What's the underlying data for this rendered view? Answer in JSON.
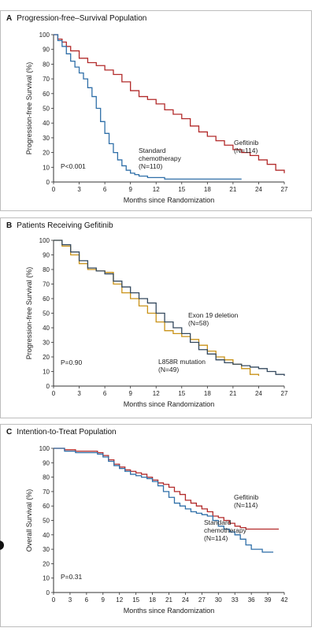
{
  "chart_data": [
    {
      "type": "line",
      "panel_letter": "A",
      "title": "Progression-free–Survival Population",
      "xlabel": "Months since Randomization",
      "ylabel": "Progression-free Survival (%)",
      "xlim": [
        0,
        27
      ],
      "ylim": [
        0,
        100
      ],
      "xticks": [
        0,
        3,
        6,
        9,
        12,
        15,
        18,
        21,
        24,
        27
      ],
      "yticks": [
        0,
        10,
        20,
        30,
        40,
        50,
        60,
        70,
        80,
        90,
        100
      ],
      "annotations": [
        "P<0.001"
      ],
      "series": [
        {
          "label_lines": [
            "Gefitinib",
            "(N=114)"
          ],
          "color": "#b22a2a",
          "x": [
            0,
            0.5,
            1,
            1.5,
            2,
            3,
            4,
            5,
            6,
            7,
            8,
            9,
            10,
            11,
            12,
            13,
            14,
            15,
            16,
            17,
            18,
            19,
            20,
            21,
            22,
            23,
            24,
            25,
            26,
            27
          ],
          "y": [
            100,
            97,
            95,
            92,
            89,
            84,
            81,
            79,
            76,
            73,
            68,
            62,
            58,
            56,
            53,
            49,
            46,
            43,
            38,
            34,
            31,
            28,
            25,
            22,
            20,
            18,
            15,
            12,
            8,
            6
          ]
        },
        {
          "label_lines": [
            "Standard",
            "chemotherapy",
            "(N=110)"
          ],
          "color": "#2f6fa8",
          "x": [
            0,
            0.5,
            1,
            1.5,
            2,
            2.5,
            3,
            3.5,
            4,
            4.5,
            5,
            5.5,
            6,
            6.5,
            7,
            7.5,
            8,
            8.5,
            9,
            9.5,
            10,
            11,
            12,
            13,
            14,
            16,
            18,
            20,
            22
          ],
          "y": [
            100,
            96,
            92,
            87,
            82,
            78,
            74,
            70,
            64,
            58,
            50,
            41,
            33,
            26,
            20,
            15,
            11,
            8,
            6,
            5,
            4,
            3,
            3,
            2,
            2,
            2,
            2,
            2,
            2
          ]
        }
      ]
    },
    {
      "type": "line",
      "panel_letter": "B",
      "title": "Patients Receiving Gefitinib",
      "xlabel": "Months since Randomization",
      "ylabel": "Progression-free Survival (%)",
      "xlim": [
        0,
        27
      ],
      "ylim": [
        0,
        100
      ],
      "xticks": [
        0,
        3,
        6,
        9,
        12,
        15,
        18,
        21,
        24,
        27
      ],
      "yticks": [
        0,
        10,
        20,
        30,
        40,
        50,
        60,
        70,
        80,
        90,
        100
      ],
      "annotations": [
        "P=0.90"
      ],
      "series": [
        {
          "label_lines": [
            "Exon 19 deletion",
            "(N=58)"
          ],
          "color": "#c99217",
          "x": [
            0,
            1,
            2,
            3,
            4,
            5,
            6,
            7,
            8,
            9,
            10,
            11,
            12,
            13,
            14,
            15,
            16,
            17,
            18,
            19,
            20,
            21,
            22,
            23,
            24
          ],
          "y": [
            100,
            96,
            90,
            84,
            80,
            79,
            78,
            70,
            64,
            60,
            55,
            50,
            44,
            38,
            36,
            34,
            32,
            28,
            24,
            20,
            18,
            15,
            12,
            8,
            7
          ]
        },
        {
          "label_lines": [
            "L858R mutation",
            "(N=49)"
          ],
          "color": "#34495e",
          "x": [
            0,
            1,
            2,
            3,
            4,
            5,
            6,
            7,
            8,
            9,
            10,
            11,
            12,
            13,
            14,
            15,
            16,
            17,
            18,
            19,
            20,
            21,
            22,
            23,
            24,
            25,
            26,
            27
          ],
          "y": [
            100,
            97,
            92,
            86,
            81,
            79,
            77,
            72,
            68,
            64,
            60,
            57,
            50,
            44,
            40,
            36,
            30,
            25,
            22,
            18,
            16,
            15,
            14,
            13,
            12,
            10,
            8,
            7
          ]
        }
      ]
    },
    {
      "type": "line",
      "panel_letter": "C",
      "title": "Intention-to-Treat Population",
      "xlabel": "Months since Randomization",
      "ylabel": "Overall Survival (%)",
      "xlim": [
        0,
        42
      ],
      "ylim": [
        0,
        100
      ],
      "xticks": [
        0,
        3,
        6,
        9,
        12,
        15,
        18,
        21,
        24,
        27,
        30,
        33,
        36,
        39,
        42
      ],
      "yticks": [
        0,
        10,
        20,
        30,
        40,
        50,
        60,
        70,
        80,
        90,
        100
      ],
      "annotations": [
        "P=0.31"
      ],
      "series": [
        {
          "label_lines": [
            "Gefitinib",
            "(N=114)"
          ],
          "color": "#b22a2a",
          "x": [
            0,
            2,
            4,
            6,
            8,
            9,
            10,
            11,
            12,
            13,
            14,
            15,
            16,
            17,
            18,
            19,
            20,
            21,
            22,
            23,
            24,
            25,
            26,
            27,
            28,
            29,
            30,
            31,
            32,
            33,
            34,
            35,
            36,
            38,
            40,
            41
          ],
          "y": [
            100,
            99,
            98,
            98,
            97,
            95,
            92,
            89,
            87,
            85,
            84,
            83,
            82,
            80,
            78,
            76,
            75,
            73,
            70,
            68,
            64,
            62,
            60,
            58,
            56,
            53,
            52,
            50,
            48,
            46,
            45,
            44,
            44,
            44,
            44,
            44
          ]
        },
        {
          "label_lines": [
            "Standard",
            "chemotherapy",
            "(N=114)"
          ],
          "color": "#2f6fa8",
          "x": [
            0,
            2,
            4,
            6,
            8,
            9,
            10,
            11,
            12,
            13,
            14,
            15,
            16,
            17,
            18,
            19,
            20,
            21,
            22,
            23,
            24,
            25,
            26,
            27,
            28,
            29,
            30,
            31,
            32,
            33,
            34,
            35,
            36,
            38,
            40
          ],
          "y": [
            100,
            98,
            97,
            97,
            96,
            94,
            91,
            88,
            86,
            84,
            82,
            81,
            80,
            79,
            77,
            74,
            70,
            66,
            62,
            60,
            58,
            56,
            55,
            54,
            53,
            50,
            46,
            44,
            42,
            40,
            37,
            33,
            30,
            28,
            28
          ]
        }
      ]
    }
  ]
}
